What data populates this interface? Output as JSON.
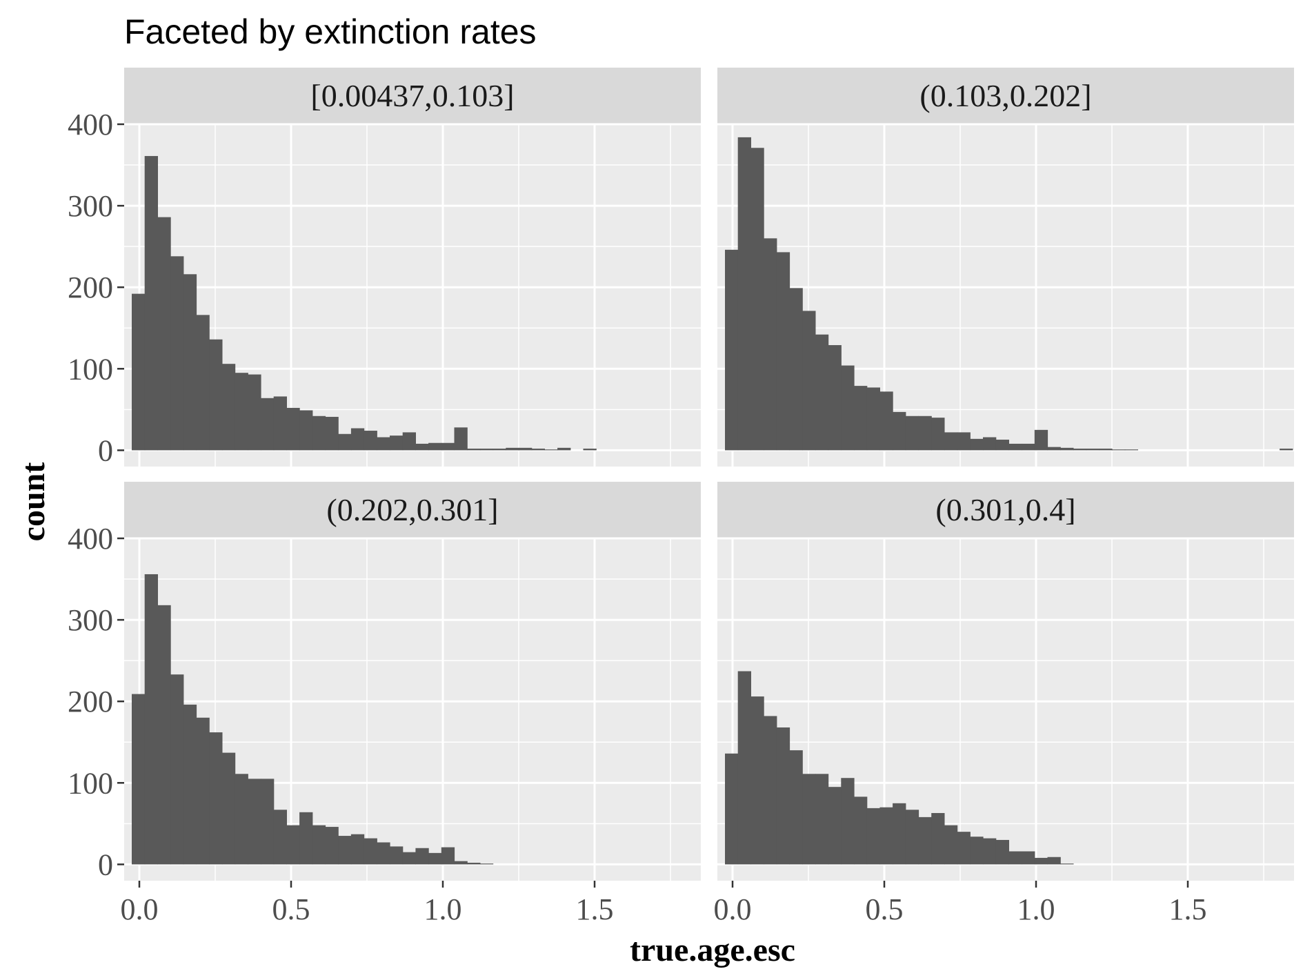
{
  "chart_data": {
    "type": "bar",
    "title": "Faceted by extinction rates",
    "xlabel": "true.age.esc",
    "ylabel": "count",
    "xlim": [
      -0.05,
      1.85
    ],
    "ylim": [
      -20,
      400
    ],
    "x_ticks": [
      0.0,
      0.5,
      1.0,
      1.5
    ],
    "x_tick_labels": [
      "0.0",
      "0.5",
      "1.0",
      "1.5"
    ],
    "y_ticks": [
      0,
      100,
      200,
      300,
      400
    ],
    "y_tick_labels": [
      "0",
      "100",
      "200",
      "300",
      "400"
    ],
    "grid": true,
    "bin_start": -0.025,
    "bin_width": 0.0425,
    "bar_color": "#595959",
    "panel_bg": "#ebebeb",
    "strip_bg": "#d9d9d9",
    "facets": [
      {
        "label": "[0.00437,0.103]",
        "values": [
          192,
          361,
          286,
          238,
          216,
          166,
          136,
          106,
          95,
          93,
          64,
          66,
          52,
          49,
          42,
          41,
          20,
          27,
          24,
          16,
          18,
          22,
          8,
          9,
          9,
          28,
          2,
          2,
          2,
          3,
          3,
          2,
          1,
          3,
          0,
          2,
          0,
          0,
          0,
          0,
          0,
          0,
          0,
          0
        ]
      },
      {
        "label": "(0.103,0.202]",
        "values": [
          246,
          384,
          371,
          260,
          243,
          199,
          171,
          142,
          129,
          104,
          79,
          77,
          72,
          47,
          42,
          42,
          40,
          22,
          22,
          14,
          16,
          13,
          8,
          8,
          25,
          4,
          3,
          2,
          2,
          2,
          1,
          1,
          0,
          0,
          0,
          0,
          0,
          0,
          0,
          0,
          0,
          0,
          0,
          2
        ]
      },
      {
        "label": "(0.202,0.301]",
        "values": [
          209,
          356,
          318,
          233,
          196,
          180,
          162,
          137,
          111,
          105,
          105,
          67,
          48,
          64,
          48,
          46,
          35,
          37,
          32,
          27,
          22,
          15,
          20,
          14,
          21,
          4,
          2,
          1,
          0,
          0,
          0,
          0,
          0,
          0,
          0,
          0,
          0,
          0,
          0,
          0,
          0,
          0,
          0,
          0
        ]
      },
      {
        "label": "(0.301,0.4]",
        "values": [
          136,
          237,
          206,
          182,
          168,
          140,
          111,
          111,
          95,
          106,
          83,
          69,
          70,
          75,
          67,
          58,
          63,
          48,
          40,
          34,
          32,
          30,
          16,
          16,
          8,
          9,
          1,
          0,
          0,
          0,
          0,
          0,
          0,
          0,
          0,
          0,
          0,
          0,
          0,
          0,
          0,
          0,
          0,
          0
        ]
      }
    ]
  }
}
